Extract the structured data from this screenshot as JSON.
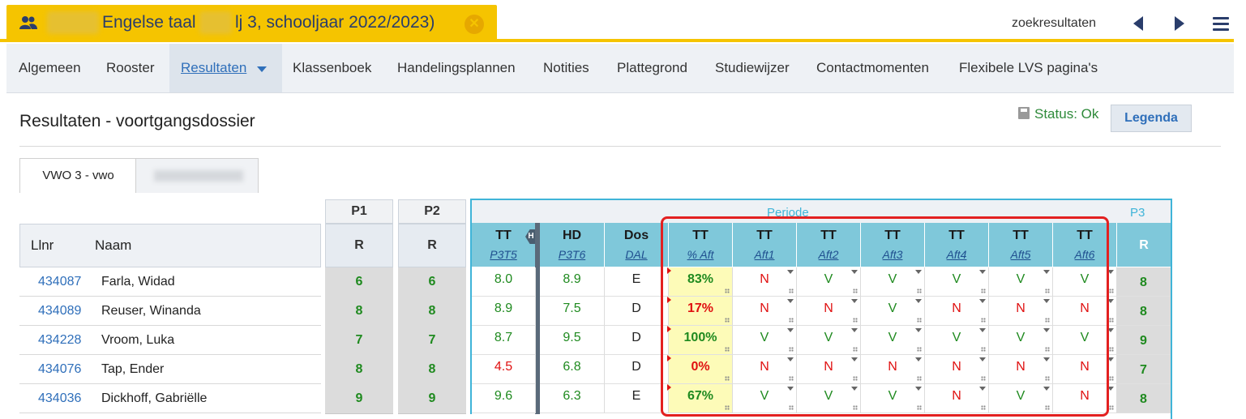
{
  "header": {
    "title_part1": "Engelse taal",
    "title_part2": "lj 3, schooljaar 2022/2023)",
    "search_results_label": "zoekresultaten"
  },
  "nav": {
    "items": [
      {
        "label": "Algemeen"
      },
      {
        "label": "Rooster"
      },
      {
        "label": "Resultaten"
      },
      {
        "label": "Klassenboek"
      },
      {
        "label": "Handelingsplannen"
      },
      {
        "label": "Notities"
      },
      {
        "label": "Plattegrond"
      },
      {
        "label": "Studiewijzer"
      },
      {
        "label": "Contactmomenten"
      },
      {
        "label": "Flexibele LVS pagina's"
      }
    ],
    "active": "Resultaten"
  },
  "page": {
    "title": "Resultaten - voortgangsdossier",
    "status": "Status: Ok",
    "legend_button": "Legenda",
    "tab_active": "VWO 3 - vwo"
  },
  "table": {
    "llnr_header": "Llnr",
    "naam_header": "Naam",
    "p1_label": "P1",
    "p2_label": "P2",
    "p3_label": "P3",
    "r_label": "R",
    "periode_label": "Periode",
    "h_badge": "H",
    "columns": [
      {
        "top": "TT",
        "sub": "P3T5"
      },
      {
        "top": "HD",
        "sub": "P3T6"
      },
      {
        "top": "Dos",
        "sub": "DAL"
      },
      {
        "top": "TT",
        "sub": "% Aft"
      },
      {
        "top": "TT",
        "sub": "Aft1"
      },
      {
        "top": "TT",
        "sub": "Aft2"
      },
      {
        "top": "TT",
        "sub": "Aft3"
      },
      {
        "top": "TT",
        "sub": "Aft4"
      },
      {
        "top": "TT",
        "sub": "Aft5"
      },
      {
        "top": "TT",
        "sub": "Aft6"
      }
    ],
    "rows": [
      {
        "llnr": "434087",
        "naam": "Farla, Widad",
        "p1": "6",
        "p2": "6",
        "tt": "8.0",
        "hd": "8.9",
        "dos": "E",
        "pct": "83%",
        "aft": [
          "N",
          "V",
          "V",
          "V",
          "V",
          "V"
        ],
        "p3": "8"
      },
      {
        "llnr": "434089",
        "naam": "Reuser, Winanda",
        "p1": "8",
        "p2": "8",
        "tt": "8.9",
        "hd": "7.5",
        "dos": "D",
        "pct": "17%",
        "aft": [
          "N",
          "N",
          "V",
          "N",
          "N",
          "N"
        ],
        "p3": "8"
      },
      {
        "llnr": "434228",
        "naam": "Vroom, Luka",
        "p1": "7",
        "p2": "7",
        "tt": "8.7",
        "hd": "9.5",
        "dos": "D",
        "pct": "100%",
        "aft": [
          "V",
          "V",
          "V",
          "V",
          "V",
          "V"
        ],
        "p3": "9"
      },
      {
        "llnr": "434076",
        "naam": "Tap, Ender",
        "p1": "8",
        "p2": "8",
        "tt": "4.5",
        "hd": "6.8",
        "dos": "D",
        "pct": "0%",
        "aft": [
          "N",
          "N",
          "N",
          "N",
          "N",
          "N"
        ],
        "p3": "7"
      },
      {
        "llnr": "434036",
        "naam": "Dickhoff, Gabriëlle",
        "p1": "9",
        "p2": "9",
        "tt": "9.6",
        "hd": "6.3",
        "dos": "E",
        "pct": "67%",
        "aft": [
          "V",
          "V",
          "V",
          "N",
          "V",
          "N"
        ],
        "p3": "8"
      }
    ]
  },
  "colors": {
    "accent_yellow": "#f5c400",
    "periode_blue": "#3fb4d8",
    "pass_green": "#1f8a1f",
    "fail_red": "#e01010",
    "highlight_red": "#e32020"
  }
}
